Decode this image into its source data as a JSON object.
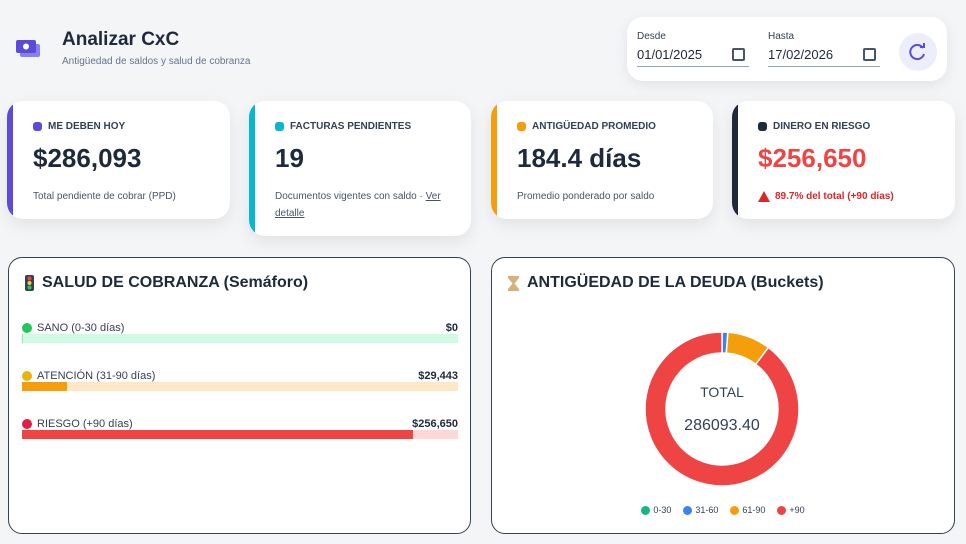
{
  "header": {
    "title": "Analizar CxC",
    "subtitle": "Antigüedad de saldos y salud de cobranza"
  },
  "filters": {
    "from_label": "Desde",
    "from_value": "01/01/2025",
    "to_label": "Hasta",
    "to_value": "17/02/2026"
  },
  "kpis": [
    {
      "label": "ME DEBEN HOY",
      "value": "$286,093",
      "note": "Total pendiente de cobrar (PPD)",
      "color": "#5b4bdb"
    },
    {
      "label": "FACTURAS PENDIENTES",
      "value": "19",
      "note": "Documentos vigentes con saldo ·",
      "link": "Ver detalle",
      "color": "#06b6d4"
    },
    {
      "label": "ANTIGÜEDAD PROMEDIO",
      "value": "184.4 días",
      "note": "Promedio ponderado por saldo",
      "color": "#f59e0b"
    },
    {
      "label": "DINERO EN RIESGO",
      "value": "$256,650",
      "note": "89.7% del total (+90 días)",
      "color": "#1e293b",
      "alert": true
    }
  ],
  "health": {
    "title": "SALUD DE COBRANZA (Semáforo)",
    "rows": [
      {
        "name": "SANO (0-30 días)",
        "value": 0,
        "value_label": "$0",
        "color": "#86efac",
        "track": "#d1fae5",
        "dot": "#22c55e"
      },
      {
        "name": "ATENCIÓN (31-90 días)",
        "value": 29443,
        "value_label": "$29,443",
        "color": "#f59e0b",
        "track": "#fde7c7",
        "dot": "#eab308"
      },
      {
        "name": "RIESGO (+90 días)",
        "value": 256650,
        "value_label": "$256,650",
        "color": "#ef4444",
        "track": "#fed7d7",
        "dot": "#e11d48"
      }
    ]
  },
  "chart_data": {
    "type": "donut",
    "title": "ANTIGÜEDAD DE LA DEUDA (Buckets)",
    "center_label": "TOTAL",
    "center_value": "286093.40",
    "categories": [
      "0-30",
      "31-60",
      "61-90",
      "+90"
    ],
    "values": [
      0,
      3500,
      25943,
      256650
    ],
    "colors": [
      "#10b981",
      "#3b82f6",
      "#f59e0b",
      "#ef4444"
    ]
  }
}
